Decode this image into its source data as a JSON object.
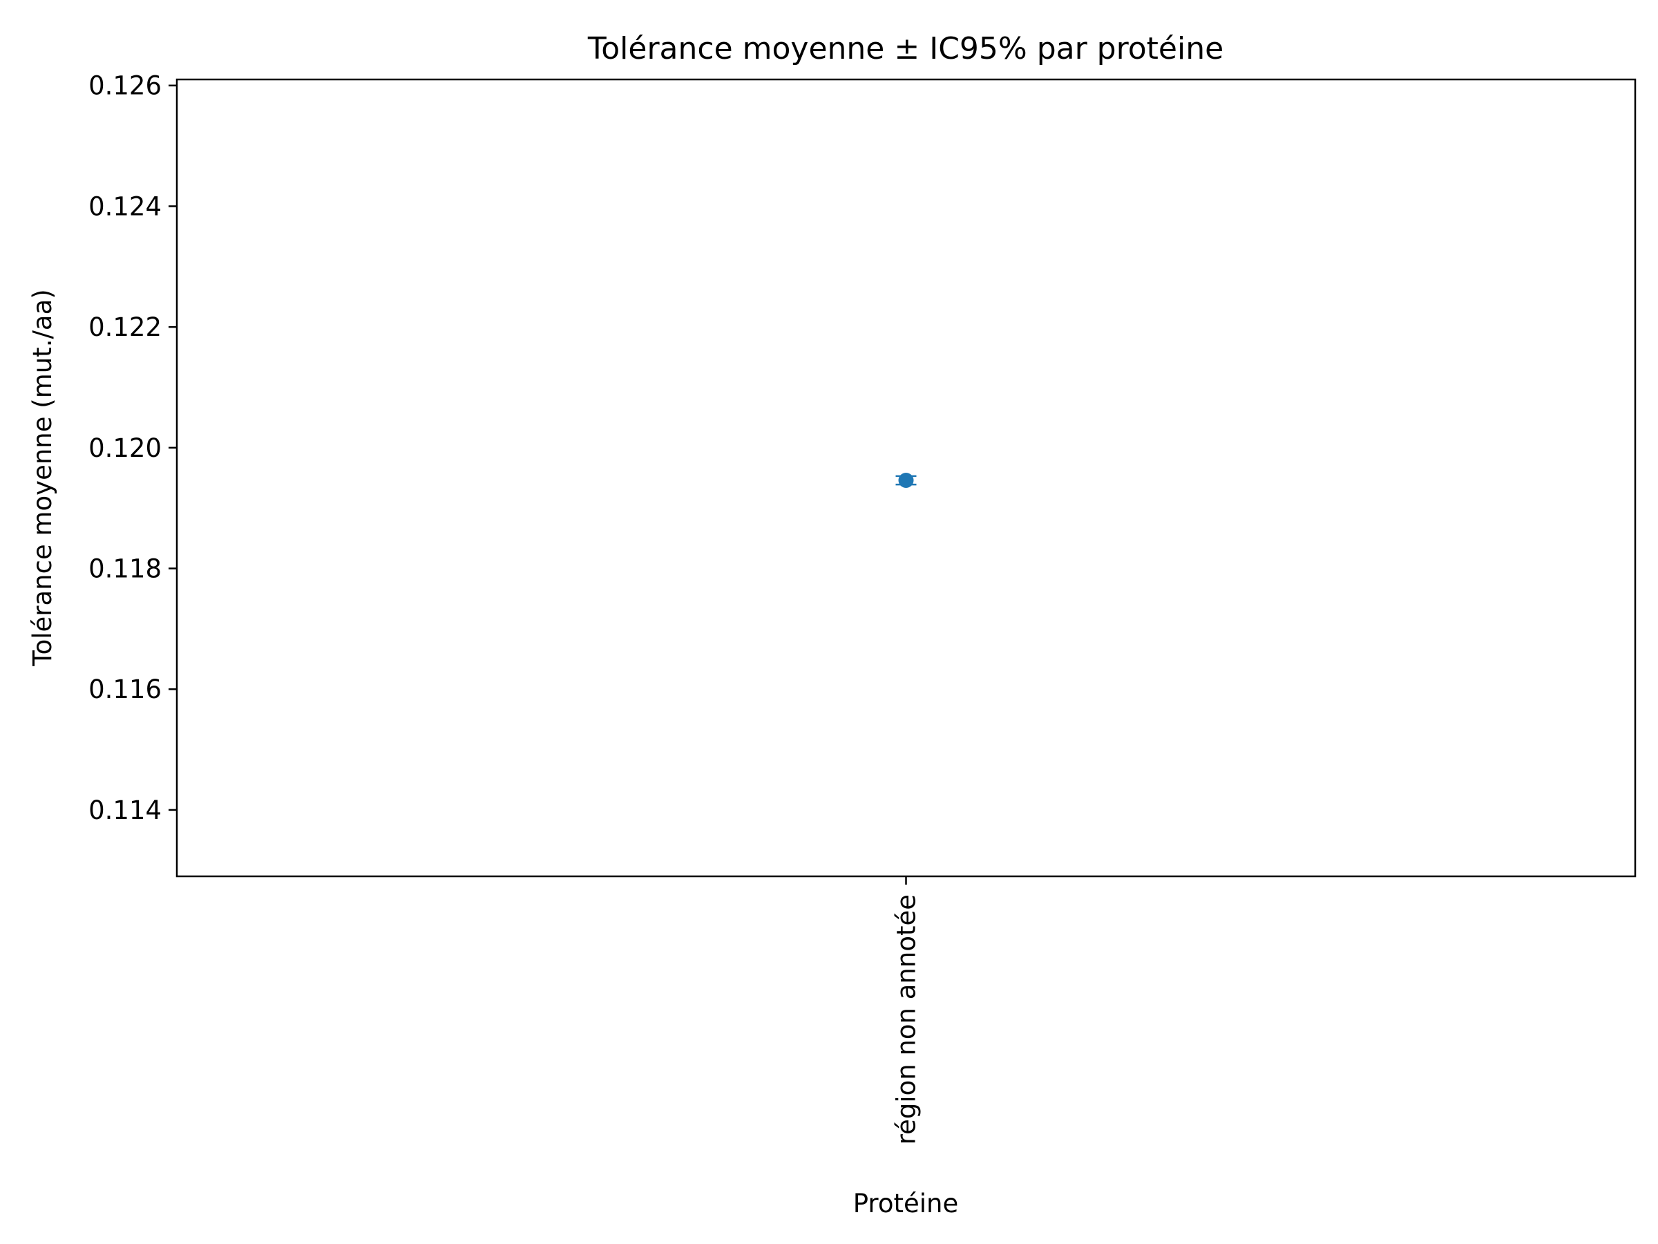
{
  "chart_data": {
    "type": "scatter",
    "title": "Tolérance moyenne ± IC95% par protéine",
    "xlabel": "Protéine",
    "ylabel": "Tolérance moyenne (mut./aa)",
    "categories": [
      "région non annotée"
    ],
    "series": [
      {
        "values": [
          0.11946
        ],
        "ci_low": [
          0.11939
        ],
        "ci_high": [
          0.11953
        ]
      }
    ],
    "ylim": [
      0.1129,
      0.1261
    ],
    "yticks": [
      0.114,
      0.116,
      0.118,
      0.12,
      0.122,
      0.124,
      0.126
    ],
    "ytick_labels": [
      "0.114",
      "0.116",
      "0.118",
      "0.120",
      "0.122",
      "0.124",
      "0.126"
    ],
    "grid": false,
    "legend": "none",
    "colors": {
      "marker": "#1f77b4",
      "axes": "#000000",
      "background": "#ffffff"
    }
  }
}
